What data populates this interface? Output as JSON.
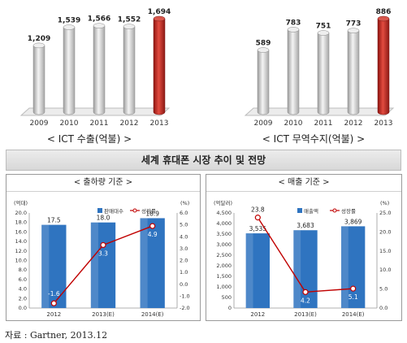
{
  "chart_data": [
    {
      "type": "bar",
      "caption": "< ICT 수출(억불) >",
      "categories": [
        "2009",
        "2010",
        "2011",
        "2012",
        "2013"
      ],
      "values": [
        1209,
        1539,
        1566,
        1552,
        1694
      ],
      "value_labels": [
        "1,209",
        "1,539",
        "1,566",
        "1,552",
        "1,694"
      ],
      "highlight_last": true,
      "colors": {
        "bar": "#cfcfcf",
        "highlight": "#c0302a"
      }
    },
    {
      "type": "bar",
      "caption": "< ICT 무역수지(억불) >",
      "categories": [
        "2009",
        "2010",
        "2011",
        "2012",
        "2013"
      ],
      "values": [
        589,
        783,
        751,
        773,
        886
      ],
      "value_labels": [
        "589",
        "783",
        "751",
        "773",
        "886"
      ],
      "highlight_last": true,
      "colors": {
        "bar": "#cfcfcf",
        "highlight": "#c0302a"
      }
    },
    {
      "type": "bar+line",
      "title": "< 출하량 기준 >",
      "left_unit": "(억대)",
      "right_unit": "(%)",
      "categories": [
        "2012",
        "2013(E)",
        "2014(E)"
      ],
      "series": [
        {
          "name": "판매대수",
          "type": "bar",
          "values": [
            17.5,
            18.0,
            18.9
          ],
          "labels": [
            "17.5",
            "18.0",
            "18.9"
          ],
          "axis": "left"
        },
        {
          "name": "성장률",
          "type": "line",
          "values": [
            -1.6,
            3.3,
            4.9
          ],
          "labels": [
            "-1.6",
            "3.3",
            "4.9"
          ],
          "axis": "right"
        }
      ],
      "ylim_left": [
        0,
        20
      ],
      "yticks_left": [
        "0.0",
        "2.0",
        "4.0",
        "6.0",
        "8.0",
        "10.0",
        "12.0",
        "14.0",
        "16.0",
        "18.0",
        "20.0"
      ],
      "ylim_right": [
        -2,
        6
      ],
      "yticks_right": [
        "-2.0",
        "-1.0",
        "0.0",
        "1.0",
        "2.0",
        "3.0",
        "4.0",
        "5.0",
        "6.0"
      ],
      "colors": {
        "bar": "#2f74c0",
        "line": "#c00000"
      }
    },
    {
      "type": "bar+line",
      "title": "< 매출 기준 >",
      "left_unit": "(억달러)",
      "right_unit": "(%)",
      "categories": [
        "2012",
        "2013(E)",
        "2014(E)"
      ],
      "series": [
        {
          "name": "매출액",
          "type": "bar",
          "values": [
            3535,
            3683,
            3869
          ],
          "labels": [
            "3,535",
            "3,683",
            "3,869"
          ],
          "axis": "left"
        },
        {
          "name": "성장률",
          "type": "line",
          "values": [
            23.8,
            4.2,
            5.1
          ],
          "labels": [
            "23.8",
            "4.2",
            "5.1"
          ],
          "axis": "right"
        }
      ],
      "ylim_left": [
        0,
        4500
      ],
      "yticks_left": [
        "0",
        "500",
        "1,000",
        "1,500",
        "2,000",
        "2,500",
        "3,000",
        "3,500",
        "4,000",
        "4,500"
      ],
      "ylim_right": [
        0,
        25
      ],
      "yticks_right": [
        "0.0",
        "5.0",
        "10.0",
        "15.0",
        "20.0",
        "25.0"
      ],
      "colors": {
        "bar": "#2f74c0",
        "line": "#c00000"
      }
    }
  ],
  "section_title": "세계 휴대폰 시장 추이 및 전망",
  "source": "자료 : Gartner, 2013.12"
}
